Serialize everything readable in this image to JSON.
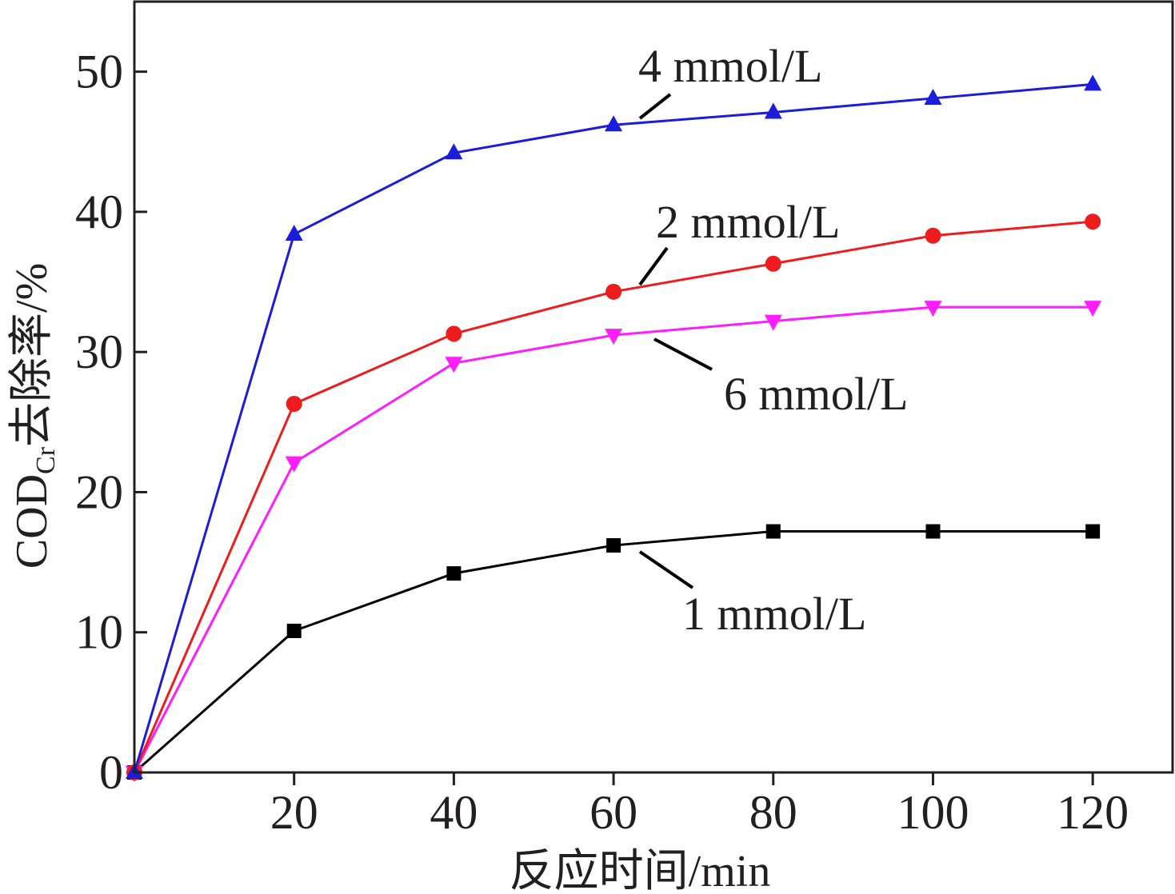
{
  "chart_data": {
    "type": "line",
    "xlabel": "反应时间/min",
    "ylabel": {
      "main": "COD",
      "subscript": "Cr",
      "suffix": "去除率/%"
    },
    "xlim": [
      0,
      130
    ],
    "ylim": [
      0,
      55
    ],
    "xticks": [
      20,
      40,
      60,
      80,
      100,
      120
    ],
    "yticks": [
      0,
      10,
      20,
      30,
      40,
      50
    ],
    "x": [
      0,
      20,
      40,
      60,
      80,
      100,
      120
    ],
    "grid": false,
    "series": [
      {
        "name": "1 mmol/L",
        "color": "#000000",
        "marker": "square",
        "values": [
          0,
          10.1,
          14.2,
          16.2,
          17.2,
          17.2,
          17.2
        ]
      },
      {
        "name": "2 mmol/L",
        "color": "#ee1c1c",
        "marker": "circle",
        "values": [
          0,
          26.3,
          31.3,
          34.3,
          36.3,
          38.3,
          39.3
        ]
      },
      {
        "name": "4 mmol/L",
        "color": "#1c1cdc",
        "marker": "triangle-up",
        "values": [
          0,
          38.4,
          44.2,
          46.2,
          47.1,
          48.1,
          49.1
        ]
      },
      {
        "name": "6 mmol/L",
        "color": "#ff1cff",
        "marker": "triangle-down",
        "values": [
          0,
          22.1,
          29.2,
          31.2,
          32.2,
          33.2,
          33.2
        ]
      }
    ]
  }
}
